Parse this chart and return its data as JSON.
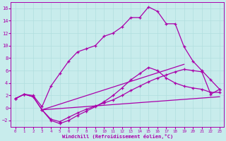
{
  "xlabel": "Windchill (Refroidissement éolien,°C)",
  "bg_color": "#c8ecec",
  "grid_color": "#b0dede",
  "line_color": "#aa00aa",
  "xlim": [
    -0.5,
    23.5
  ],
  "ylim": [
    -3.0,
    17.0
  ],
  "xticks": [
    0,
    1,
    2,
    3,
    4,
    5,
    6,
    7,
    8,
    9,
    10,
    11,
    12,
    13,
    14,
    15,
    16,
    17,
    18,
    19,
    20,
    21,
    22,
    23
  ],
  "yticks": [
    -2,
    0,
    2,
    4,
    6,
    8,
    10,
    12,
    14,
    16
  ],
  "line1_x": [
    0,
    1,
    2,
    3,
    4,
    5,
    6,
    7,
    8,
    9,
    10,
    11,
    12,
    13,
    14,
    15,
    16,
    17,
    18,
    19,
    20,
    21,
    22,
    23
  ],
  "line1_y": [
    1.5,
    2.2,
    2.0,
    0.2,
    3.5,
    5.5,
    7.5,
    9.0,
    9.5,
    10.0,
    11.5,
    12.0,
    13.0,
    14.5,
    14.5,
    16.2,
    15.5,
    13.5,
    13.5,
    9.8,
    7.5,
    6.0,
    4.5,
    3.0
  ],
  "line2_x": [
    0,
    1,
    2,
    3,
    4,
    5,
    6,
    7,
    8,
    9,
    10,
    11,
    12,
    13,
    14,
    15,
    16,
    17,
    18,
    19,
    20,
    21,
    22,
    23
  ],
  "line2_y": [
    1.5,
    2.2,
    1.8,
    -0.3,
    -1.8,
    -2.2,
    -1.5,
    -0.8,
    -0.2,
    0.3,
    0.8,
    1.3,
    2.0,
    2.8,
    3.5,
    4.2,
    4.8,
    5.3,
    5.8,
    6.2,
    6.0,
    5.8,
    2.2,
    3.0
  ],
  "line3_x": [
    0,
    1,
    2,
    3,
    4,
    5,
    6,
    7,
    8,
    9,
    10,
    11,
    12,
    13,
    14,
    15,
    16,
    17,
    18,
    19,
    20,
    21,
    22,
    23
  ],
  "line3_y": [
    1.5,
    2.2,
    1.8,
    -0.3,
    -2.0,
    -2.5,
    -2.0,
    -1.2,
    -0.5,
    0.2,
    1.0,
    2.0,
    3.2,
    4.5,
    5.5,
    6.5,
    6.0,
    4.8,
    4.0,
    3.5,
    3.2,
    3.0,
    2.5,
    2.5
  ],
  "line4_x": [
    3,
    23
  ],
  "line4_y": [
    -0.3,
    1.8
  ],
  "line5_x": [
    3,
    19
  ],
  "line5_y": [
    -0.3,
    7.0
  ]
}
